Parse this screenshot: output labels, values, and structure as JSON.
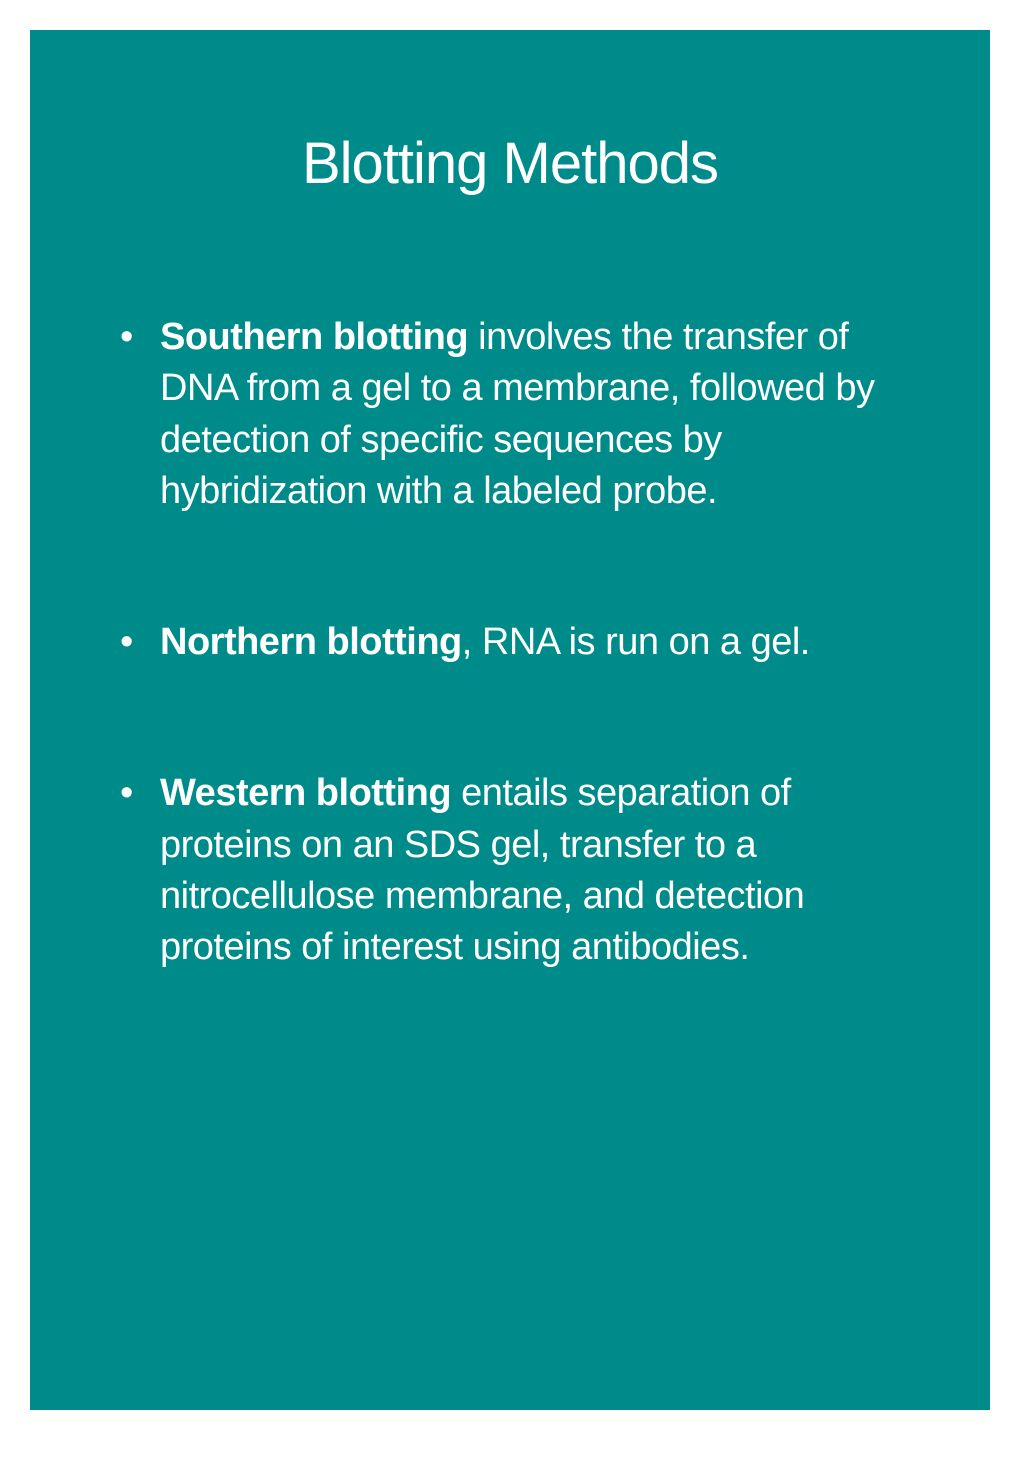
{
  "slide": {
    "background_color": "#008b8b",
    "text_color": "#ffffff",
    "title": "Blotting Methods",
    "title_fontsize": 58,
    "body_fontsize": 38,
    "bullets": [
      {
        "bold_lead": "Southern blotting",
        "text": " involves the transfer of DNA from a gel to a membrane, followed by detection of specific sequences by hybridization with a labeled probe."
      },
      {
        "bold_lead": "Northern blotting",
        "text": ", RNA is run on a gel."
      },
      {
        "bold_lead": "Western blotting",
        "text": " entails separation of proteins on an SDS gel, transfer to a nitrocellulose membrane, and detection proteins of interest using antibodies."
      }
    ]
  }
}
